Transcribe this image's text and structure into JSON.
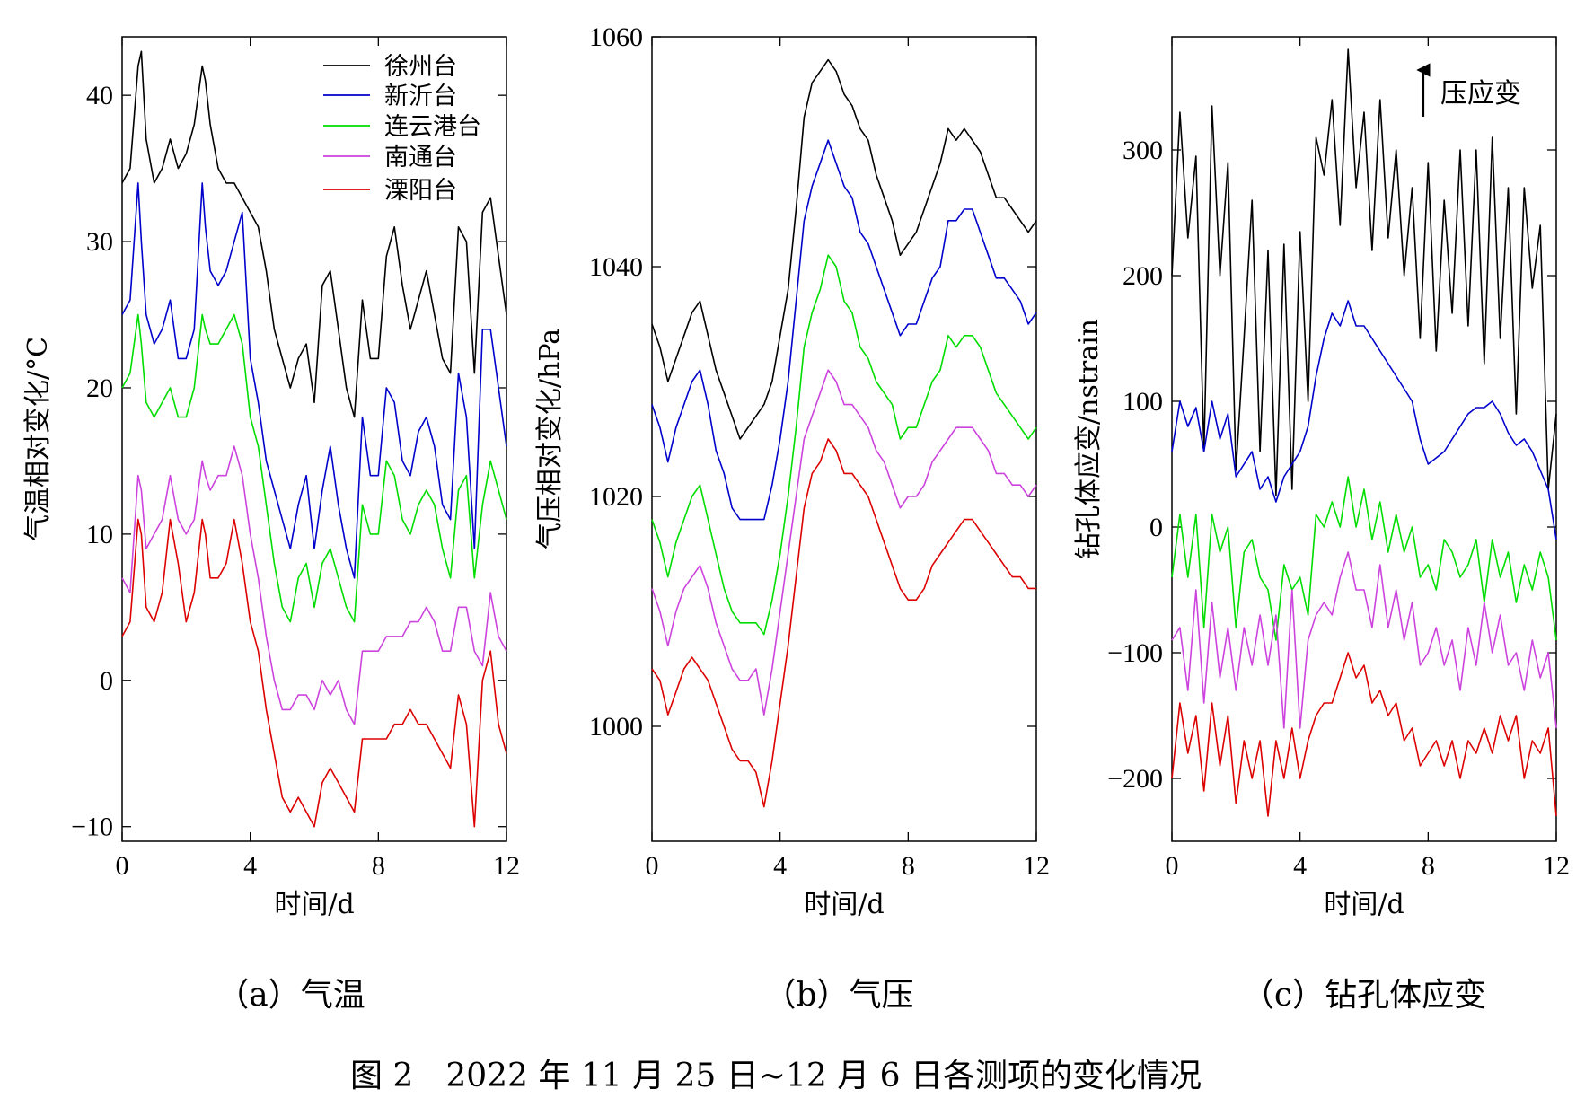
{
  "figure_caption": "图 2　2022 年 11 月 25 日~12 月 6 日各测项的变化情况",
  "colors": {
    "徐州台": "#000000",
    "新沂台": "#0000cc",
    "连云港台": "#00dd00",
    "南通台": "#cc44dd",
    "溧阳台": "#dd0000"
  },
  "chart_data": [
    {
      "id": "a",
      "type": "line",
      "subtitle": "（a）气温",
      "xlabel": "时间/d",
      "ylabel": "气温相对变化/°C",
      "xlim": [
        0,
        12
      ],
      "ylim": [
        -11,
        44
      ],
      "xticks": [
        0,
        4,
        8,
        12
      ],
      "yticks": [
        -10,
        0,
        10,
        20,
        30,
        40
      ],
      "ytick_labels": [
        "−10",
        "0",
        "10",
        "20",
        "30",
        "40"
      ],
      "legend": {
        "position": "top-right",
        "entries": [
          "徐州台",
          "新沂台",
          "连云港台",
          "南通台",
          "溧阳台"
        ]
      },
      "x": [
        0,
        0.25,
        0.5,
        0.6,
        0.75,
        1.0,
        1.25,
        1.5,
        1.75,
        2.0,
        2.25,
        2.5,
        2.6,
        2.75,
        3.0,
        3.25,
        3.5,
        3.75,
        4.0,
        4.25,
        4.5,
        4.75,
        5.0,
        5.25,
        5.5,
        5.75,
        6.0,
        6.25,
        6.5,
        6.75,
        7.0,
        7.25,
        7.5,
        7.75,
        8.0,
        8.25,
        8.5,
        8.75,
        9.0,
        9.25,
        9.5,
        9.75,
        10.0,
        10.25,
        10.5,
        10.75,
        11.0,
        11.25,
        11.5,
        11.75,
        12.0
      ],
      "series": [
        {
          "name": "徐州台",
          "values": [
            34,
            35,
            42,
            43,
            37,
            34,
            35,
            37,
            35,
            36,
            38,
            42,
            41,
            38,
            35,
            34,
            34,
            33,
            32,
            31,
            28,
            24,
            22,
            20,
            22,
            23,
            19,
            27,
            28,
            24,
            20,
            18,
            26,
            22,
            22,
            29,
            31,
            27,
            24,
            26,
            28,
            25,
            22,
            21,
            31,
            30,
            21,
            32,
            33,
            29,
            25
          ]
        },
        {
          "name": "新沂台",
          "values": [
            25,
            26,
            34,
            30,
            25,
            23,
            24,
            26,
            22,
            22,
            24,
            34,
            31,
            28,
            27,
            28,
            30,
            32,
            22,
            19,
            15,
            13,
            11,
            9,
            12,
            14,
            9,
            13,
            16,
            12,
            9,
            7,
            18,
            14,
            14,
            20,
            19,
            15,
            14,
            17,
            18,
            16,
            12,
            11,
            21,
            18,
            9,
            24,
            24,
            20,
            16
          ]
        },
        {
          "name": "连云港台",
          "values": [
            20,
            21,
            25,
            23,
            19,
            18,
            19,
            20,
            18,
            18,
            20,
            25,
            24,
            23,
            23,
            24,
            25,
            23,
            18,
            16,
            12,
            8,
            5,
            4,
            7,
            8,
            5,
            8,
            9,
            7,
            5,
            4,
            12,
            10,
            10,
            15,
            14,
            11,
            10,
            12,
            13,
            12,
            9,
            7,
            13,
            14,
            7,
            12,
            15,
            13,
            11
          ]
        },
        {
          "name": "南通台",
          "values": [
            7,
            6,
            14,
            13,
            9,
            10,
            11,
            14,
            11,
            10,
            11,
            15,
            14,
            13,
            14,
            14,
            16,
            14,
            10,
            7,
            3,
            0,
            -2,
            -2,
            -1,
            -1,
            -2,
            0,
            -1,
            0,
            -2,
            -3,
            2,
            2,
            2,
            3,
            3,
            3,
            4,
            4,
            5,
            4,
            2,
            2,
            5,
            5,
            2,
            1,
            6,
            3,
            2
          ]
        },
        {
          "name": "溧阳台",
          "values": [
            3,
            4,
            11,
            10,
            5,
            4,
            6,
            11,
            8,
            4,
            6,
            11,
            10,
            7,
            7,
            8,
            11,
            8,
            4,
            2,
            -2,
            -5,
            -8,
            -9,
            -8,
            -9,
            -10,
            -7,
            -6,
            -7,
            -8,
            -9,
            -4,
            -4,
            -4,
            -4,
            -3,
            -3,
            -2,
            -3,
            -3,
            -4,
            -5,
            -6,
            -1,
            -3,
            -10,
            0,
            2,
            -3,
            -5
          ]
        }
      ]
    },
    {
      "id": "b",
      "type": "line",
      "subtitle": "（b）气压",
      "xlabel": "时间/d",
      "ylabel": "气压相对变化/hPa",
      "xlim": [
        0,
        12
      ],
      "ylim": [
        990,
        1060
      ],
      "xticks": [
        0,
        4,
        8,
        12
      ],
      "yticks": [
        1000,
        1020,
        1040,
        1060
      ],
      "ytick_labels": [
        "1000",
        "1020",
        "1040",
        "1060"
      ],
      "x": [
        0,
        0.25,
        0.5,
        0.75,
        1.0,
        1.25,
        1.5,
        1.75,
        2.0,
        2.25,
        2.5,
        2.75,
        3.0,
        3.25,
        3.5,
        3.75,
        4.0,
        4.25,
        4.5,
        4.75,
        5.0,
        5.25,
        5.5,
        5.75,
        6.0,
        6.25,
        6.5,
        6.75,
        7.0,
        7.25,
        7.5,
        7.75,
        8.0,
        8.25,
        8.5,
        8.75,
        9.0,
        9.25,
        9.5,
        9.75,
        10.0,
        10.25,
        10.5,
        10.75,
        11.0,
        11.25,
        11.5,
        11.75,
        12.0
      ],
      "series": [
        {
          "name": "徐州台",
          "values": [
            1035,
            1033,
            1030,
            1032,
            1034,
            1036,
            1037,
            1034,
            1031,
            1029,
            1027,
            1025,
            1026,
            1027,
            1028,
            1030,
            1034,
            1038,
            1045,
            1053,
            1056,
            1057,
            1058,
            1057,
            1055,
            1054,
            1052,
            1051,
            1048,
            1046,
            1044,
            1041,
            1042,
            1043,
            1045,
            1047,
            1049,
            1052,
            1051,
            1052,
            1051,
            1050,
            1048,
            1046,
            1046,
            1045,
            1044,
            1043,
            1044
          ]
        },
        {
          "name": "新沂台",
          "values": [
            1028,
            1026,
            1023,
            1026,
            1028,
            1030,
            1031,
            1028,
            1024,
            1022,
            1019,
            1018,
            1018,
            1018,
            1018,
            1021,
            1025,
            1030,
            1037,
            1044,
            1047,
            1049,
            1051,
            1049,
            1047,
            1046,
            1043,
            1042,
            1040,
            1038,
            1036,
            1034,
            1035,
            1035,
            1037,
            1039,
            1040,
            1044,
            1044,
            1045,
            1045,
            1043,
            1041,
            1039,
            1039,
            1038,
            1037,
            1035,
            1036
          ]
        },
        {
          "name": "连云港台",
          "values": [
            1018,
            1016,
            1013,
            1016,
            1018,
            1020,
            1021,
            1018,
            1015,
            1012,
            1010,
            1009,
            1009,
            1009,
            1008,
            1011,
            1015,
            1020,
            1026,
            1033,
            1036,
            1038,
            1041,
            1040,
            1037,
            1036,
            1033,
            1032,
            1030,
            1029,
            1028,
            1025,
            1026,
            1026,
            1028,
            1030,
            1031,
            1034,
            1033,
            1034,
            1034,
            1033,
            1031,
            1029,
            1028,
            1027,
            1026,
            1025,
            1026
          ]
        },
        {
          "name": "南通台",
          "values": [
            1012,
            1010,
            1007,
            1010,
            1012,
            1013,
            1014,
            1012,
            1009,
            1007,
            1005,
            1004,
            1004,
            1005,
            1001,
            1005,
            1010,
            1015,
            1020,
            1025,
            1027,
            1029,
            1031,
            1030,
            1028,
            1028,
            1027,
            1026,
            1024,
            1023,
            1021,
            1019,
            1020,
            1020,
            1021,
            1023,
            1024,
            1025,
            1026,
            1026,
            1026,
            1025,
            1024,
            1022,
            1022,
            1021,
            1021,
            1020,
            1021
          ]
        },
        {
          "name": "溧阳台",
          "values": [
            1005,
            1004,
            1001,
            1003,
            1005,
            1006,
            1005,
            1004,
            1002,
            1000,
            998,
            997,
            997,
            996,
            993,
            997,
            1002,
            1007,
            1013,
            1019,
            1022,
            1023,
            1025,
            1024,
            1022,
            1022,
            1021,
            1020,
            1018,
            1016,
            1014,
            1012,
            1011,
            1011,
            1012,
            1014,
            1015,
            1016,
            1017,
            1018,
            1018,
            1017,
            1016,
            1015,
            1014,
            1013,
            1013,
            1012,
            1012
          ]
        }
      ]
    },
    {
      "id": "c",
      "type": "line",
      "subtitle": "（c）钻孔体应变",
      "xlabel": "时间/d",
      "ylabel": "钻孔体应变/nstrain",
      "annotation": "压应变",
      "xlim": [
        0,
        12
      ],
      "ylim": [
        -250,
        390
      ],
      "xticks": [
        0,
        4,
        8,
        12
      ],
      "yticks": [
        -200,
        -100,
        0,
        100,
        200,
        300
      ],
      "ytick_labels": [
        "−200",
        "−100",
        "0",
        "100",
        "200",
        "300"
      ],
      "x": [
        0,
        0.25,
        0.5,
        0.75,
        1.0,
        1.25,
        1.5,
        1.75,
        2.0,
        2.25,
        2.5,
        2.75,
        3.0,
        3.25,
        3.5,
        3.75,
        4.0,
        4.25,
        4.5,
        4.75,
        5.0,
        5.25,
        5.5,
        5.75,
        6.0,
        6.25,
        6.5,
        6.75,
        7.0,
        7.25,
        7.5,
        7.75,
        8.0,
        8.25,
        8.5,
        8.75,
        9.0,
        9.25,
        9.5,
        9.75,
        10.0,
        10.25,
        10.5,
        10.75,
        11.0,
        11.25,
        11.5,
        11.75,
        12.0
      ],
      "series": [
        {
          "name": "徐州台",
          "values": [
            200,
            330,
            230,
            295,
            60,
            335,
            200,
            290,
            45,
            150,
            260,
            60,
            220,
            25,
            225,
            30,
            235,
            100,
            310,
            280,
            340,
            240,
            380,
            270,
            330,
            220,
            340,
            230,
            300,
            200,
            270,
            150,
            290,
            140,
            260,
            170,
            300,
            160,
            300,
            130,
            310,
            150,
            270,
            90,
            270,
            190,
            240,
            30,
            90
          ]
        },
        {
          "name": "新沂台",
          "values": [
            60,
            100,
            80,
            95,
            60,
            100,
            70,
            90,
            40,
            50,
            60,
            30,
            40,
            20,
            40,
            50,
            60,
            80,
            120,
            150,
            170,
            160,
            180,
            160,
            160,
            150,
            140,
            130,
            120,
            110,
            100,
            70,
            50,
            55,
            60,
            70,
            80,
            90,
            95,
            95,
            100,
            90,
            75,
            65,
            70,
            60,
            45,
            30,
            -10
          ]
        },
        {
          "name": "连云港台",
          "values": [
            -40,
            10,
            -40,
            10,
            -80,
            10,
            -20,
            0,
            -80,
            -20,
            -10,
            -40,
            -50,
            -90,
            -30,
            -50,
            -40,
            -70,
            10,
            0,
            20,
            0,
            40,
            0,
            30,
            -10,
            20,
            -20,
            10,
            -20,
            0,
            -40,
            -30,
            -50,
            -10,
            -20,
            -40,
            -30,
            -10,
            -60,
            -10,
            -40,
            -20,
            -60,
            -30,
            -50,
            -20,
            -40,
            -90
          ]
        },
        {
          "name": "南通台",
          "values": [
            -90,
            -80,
            -130,
            -50,
            -140,
            -60,
            -120,
            -80,
            -130,
            -80,
            -110,
            -70,
            -110,
            -70,
            -160,
            -50,
            -160,
            -90,
            -70,
            -60,
            -70,
            -40,
            -20,
            -50,
            -50,
            -80,
            -30,
            -80,
            -50,
            -90,
            -60,
            -110,
            -100,
            -80,
            -110,
            -90,
            -130,
            -80,
            -110,
            -60,
            -100,
            -70,
            -110,
            -100,
            -130,
            -90,
            -120,
            -100,
            -160
          ]
        },
        {
          "name": "溧阳台",
          "values": [
            -200,
            -140,
            -180,
            -150,
            -210,
            -140,
            -190,
            -150,
            -220,
            -170,
            -200,
            -170,
            -230,
            -170,
            -200,
            -160,
            -200,
            -170,
            -150,
            -140,
            -140,
            -120,
            -100,
            -120,
            -110,
            -140,
            -130,
            -150,
            -140,
            -170,
            -160,
            -190,
            -180,
            -170,
            -190,
            -170,
            -200,
            -170,
            -180,
            -160,
            -180,
            -150,
            -170,
            -150,
            -200,
            -170,
            -180,
            -160,
            -230
          ]
        }
      ]
    }
  ]
}
